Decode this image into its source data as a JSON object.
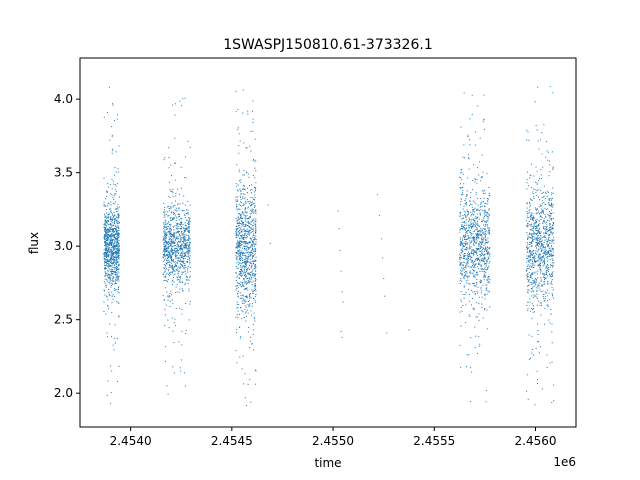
{
  "chart_data": {
    "type": "scatter",
    "title": "1SWASPJ150810.61-373326.1",
    "xlabel": "time",
    "ylabel": "flux",
    "x_offset_label": "1e6",
    "xlim": [
      2453750,
      2456200
    ],
    "ylim": [
      1.77,
      4.28
    ],
    "grid": false,
    "x_ticks": [
      2454000,
      2454500,
      2455000,
      2455500,
      2456000
    ],
    "x_tick_labels": [
      "2.4540",
      "2.4545",
      "2.4550",
      "2.4555",
      "2.4560"
    ],
    "y_ticks": [
      2.0,
      2.5,
      3.0,
      3.5,
      4.0
    ],
    "y_tick_labels": [
      "2.0",
      "2.5",
      "3.0",
      "3.5",
      "4.0"
    ],
    "marker_color": "#1f77b4",
    "series": [
      {
        "observing_seasons": [
          {
            "x_range": [
              2453868,
              2453945
            ],
            "y_center": 3.0,
            "y_spread": 0.14,
            "y_min": 1.9,
            "y_max": 4.15
          },
          {
            "x_range": [
              2454160,
              2454295
            ],
            "y_center": 3.0,
            "y_spread": 0.13,
            "y_min": 1.92,
            "y_max": 4.12
          },
          {
            "x_range": [
              2454520,
              2454620
            ],
            "y_center": 3.0,
            "y_spread": 0.22,
            "y_min": 1.88,
            "y_max": 4.12
          },
          {
            "x_range": [
              2455625,
              2455775
            ],
            "y_center": 3.0,
            "y_spread": 0.18,
            "y_min": 1.92,
            "y_max": 4.05
          },
          {
            "x_range": [
              2455955,
              2456090
            ],
            "y_center": 3.0,
            "y_spread": 0.2,
            "y_min": 1.88,
            "y_max": 4.15
          }
        ],
        "sparse_points": [
          {
            "x": 2454680,
            "y": 3.28
          },
          {
            "x": 2454690,
            "y": 3.02
          },
          {
            "x": 2455025,
            "y": 3.24
          },
          {
            "x": 2455030,
            "y": 3.12
          },
          {
            "x": 2455035,
            "y": 2.97
          },
          {
            "x": 2455040,
            "y": 2.83
          },
          {
            "x": 2455045,
            "y": 2.69
          },
          {
            "x": 2455050,
            "y": 2.62
          },
          {
            "x": 2455040,
            "y": 2.42
          },
          {
            "x": 2455045,
            "y": 2.38
          },
          {
            "x": 2455220,
            "y": 3.35
          },
          {
            "x": 2455230,
            "y": 3.21
          },
          {
            "x": 2455240,
            "y": 3.05
          },
          {
            "x": 2455245,
            "y": 2.92
          },
          {
            "x": 2455250,
            "y": 2.78
          },
          {
            "x": 2455255,
            "y": 2.66
          },
          {
            "x": 2455265,
            "y": 2.41
          },
          {
            "x": 2455375,
            "y": 2.43
          }
        ]
      }
    ]
  }
}
